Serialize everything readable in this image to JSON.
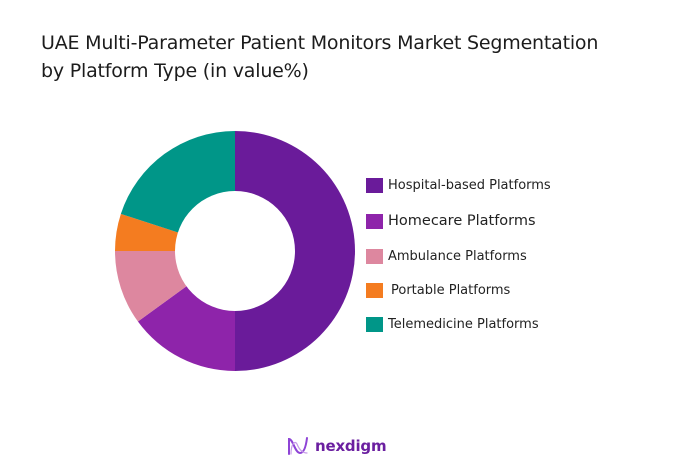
{
  "chart_data": {
    "type": "pie",
    "variant": "donut",
    "title": "UAE Multi-Parameter Patient Monitors Market Segmentation by Platform Type (in value%)",
    "title_lines": [
      "UAE Multi-Parameter Patient Monitors Market Segmentation",
      "by Platform Type (in value%)"
    ],
    "categories": [
      "Hospital-based Platforms",
      "Homecare Platforms",
      "Ambulance Platforms",
      "Portable Platforms",
      "Telemedicine Platforms"
    ],
    "values": [
      50,
      15,
      10,
      5,
      20
    ],
    "colors": [
      "#6a1b9a",
      "#8e24aa",
      "#dd879f",
      "#f47c20",
      "#009688"
    ],
    "legend_position": "right",
    "unit": "%"
  },
  "legend": {
    "items": [
      {
        "label": "Hospital-based Platforms",
        "color": "#6a1b9a"
      },
      {
        "label": "Homecare Platforms",
        "color": "#8e24aa"
      },
      {
        "label": "Ambulance Platforms",
        "color": "#dd879f"
      },
      {
        "label": "Portable Platforms",
        "color": "#f47c20"
      },
      {
        "label": "Telemedicine Platforms",
        "color": "#009688"
      }
    ]
  },
  "branding": {
    "logo_text": "nexdigm",
    "logo_icon": "wave-n-icon",
    "brand_color": "#6b1fa0"
  }
}
